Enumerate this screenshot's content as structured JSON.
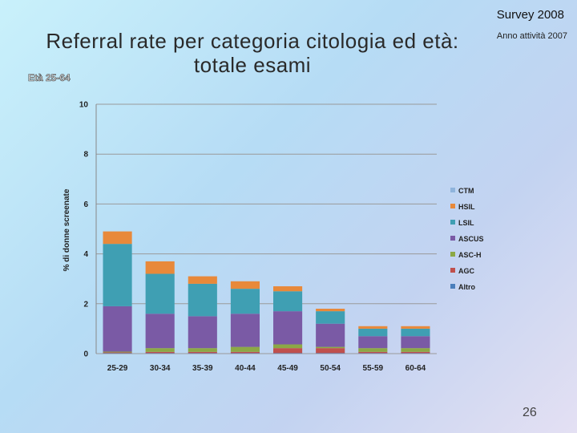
{
  "header": {
    "survey": "Survey 2008",
    "anno": "Anno attività 2007",
    "title": "Referral rate per categoria citologia ed età: totale esami",
    "age_range": "Età 25-64",
    "page_number": "26"
  },
  "colors": {
    "CTM": "#8fb4dc",
    "HSIL": "#e8893a",
    "LSIL": "#3f9fb3",
    "ASCUS": "#7a5aa5",
    "ASC-H": "#8ca845",
    "AGC": "#c0504d",
    "Altro": "#4a7ebb"
  },
  "chart_data": {
    "type": "bar",
    "stacked": true,
    "title": "Referral rate per categoria citologia ed età: totale esami",
    "ylabel": "% di donne screenate",
    "xlabel": "",
    "ylim": [
      0,
      10
    ],
    "yticks": [
      0,
      2,
      4,
      6,
      8,
      10
    ],
    "grid": true,
    "legend_position": "right",
    "categories": [
      "25-29",
      "30-34",
      "35-39",
      "40-44",
      "45-49",
      "50-54",
      "55-59",
      "60-64"
    ],
    "series": [
      {
        "name": "Altro",
        "values": [
          0.02,
          0.02,
          0.02,
          0.02,
          0.02,
          0.02,
          0.02,
          0.02
        ]
      },
      {
        "name": "AGC",
        "values": [
          0.03,
          0.05,
          0.05,
          0.05,
          0.2,
          0.2,
          0.05,
          0.05
        ]
      },
      {
        "name": "ASC-H",
        "values": [
          0.03,
          0.15,
          0.15,
          0.2,
          0.15,
          0.05,
          0.15,
          0.15
        ]
      },
      {
        "name": "ASCUS",
        "values": [
          1.82,
          1.38,
          1.28,
          1.33,
          1.33,
          0.93,
          0.48,
          0.48
        ]
      },
      {
        "name": "LSIL",
        "values": [
          2.5,
          1.6,
          1.3,
          1.0,
          0.8,
          0.5,
          0.3,
          0.3
        ]
      },
      {
        "name": "HSIL",
        "values": [
          0.5,
          0.5,
          0.3,
          0.3,
          0.2,
          0.1,
          0.1,
          0.1
        ]
      },
      {
        "name": "CTM",
        "values": [
          0.0,
          0.0,
          0.0,
          0.0,
          0.0,
          0.0,
          0.0,
          0.0
        ]
      }
    ],
    "legend_order": [
      "CTM",
      "HSIL",
      "LSIL",
      "ASCUS",
      "ASC-H",
      "AGC",
      "Altro"
    ]
  }
}
